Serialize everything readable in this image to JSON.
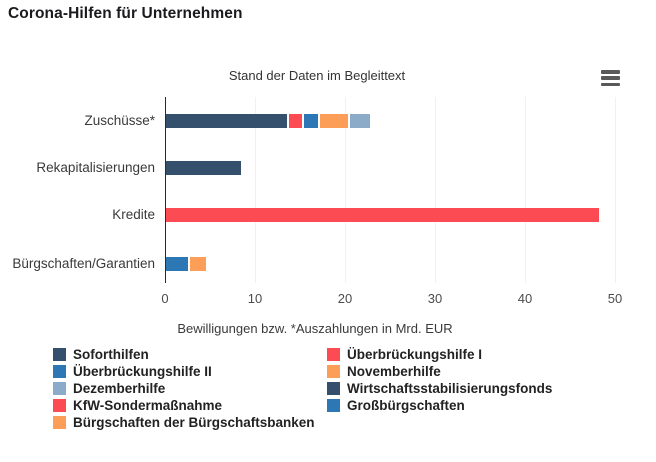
{
  "title": "Corona-Hilfen für Unternehmen",
  "subtitle": "Stand der Daten im Begleittext",
  "menu": {
    "icon": "hamburger-menu-icon"
  },
  "chart_data": {
    "type": "bar",
    "orientation": "horizontal",
    "stacked": true,
    "title": "Corona-Hilfen für Unternehmen",
    "subtitle": "Stand der Daten im Begleittext",
    "xlabel": "Bewilligungen bzw. *Auszahlungen in Mrd. EUR",
    "ylabel": "",
    "xlim": [
      0,
      50
    ],
    "x_ticks": [
      0,
      10,
      20,
      30,
      40,
      50
    ],
    "grid": true,
    "legend_position": "bottom",
    "unit": "Mrd. EUR",
    "categories": [
      "Zuschüsse*",
      "Rekapitalisierungen",
      "Kredite",
      "Bürgschaften/Garantien"
    ],
    "colors": {
      "Soforthilfen": "#35506d",
      "Überbrückungshilfe I": "#fc4b53",
      "Überbrückungshilfe II": "#2d77b5",
      "Novemberhilfe": "#fd9e58",
      "Dezemberhilfe": "#8cabc8",
      "Wirtschaftsstabilisierungsfonds": "#35506d",
      "KfW-Sondermaßnahme": "#fc4b53",
      "Großbürgschaften": "#2d77b5",
      "Bürgschaften der Bürgschaftsbanken": "#fd9e58"
    },
    "bars": [
      {
        "category": "Zuschüsse*",
        "segments": [
          {
            "name": "Soforthilfen",
            "value": 13.4
          },
          {
            "name": "Überbrückungshilfe I",
            "value": 1.4
          },
          {
            "name": "Überbrückungshilfe II",
            "value": 1.6
          },
          {
            "name": "Novemberhilfe",
            "value": 3.1
          },
          {
            "name": "Dezemberhilfe",
            "value": 2.2
          }
        ]
      },
      {
        "category": "Rekapitalisierungen",
        "segments": [
          {
            "name": "Wirtschaftsstabilisierungsfonds",
            "value": 8.3
          }
        ]
      },
      {
        "category": "Kredite",
        "segments": [
          {
            "name": "KfW-Sondermaßnahme",
            "value": 48.1
          }
        ]
      },
      {
        "category": "Bürgschaften/Garantien",
        "segments": [
          {
            "name": "Großbürgschaften",
            "value": 2.4
          },
          {
            "name": "Bürgschaften der Bürgschaftsbanken",
            "value": 1.8
          }
        ]
      }
    ]
  },
  "legend": {
    "columns": [
      [
        "Soforthilfen",
        "Überbrückungshilfe II",
        "Dezemberhilfe",
        "KfW-Sondermaßnahme",
        "Bürgschaften der Bürgschaftsbanken"
      ],
      [
        "Überbrückungshilfe I",
        "Novemberhilfe",
        "Wirtschaftsstabilisierungsfonds",
        "Großbürgschaften"
      ]
    ]
  }
}
